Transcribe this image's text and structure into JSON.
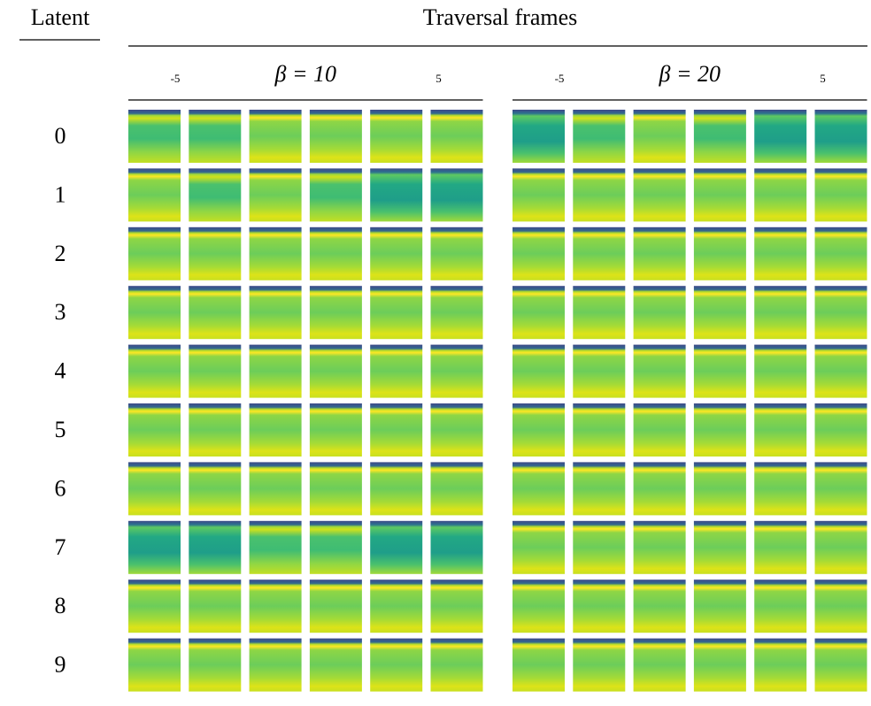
{
  "header": {
    "latent": "Latent",
    "traversal": "Traversal frames"
  },
  "groups": [
    {
      "label": "β = 10",
      "start": "-5",
      "end": "5"
    },
    {
      "label": "β = 20",
      "start": "-5",
      "end": "5"
    }
  ],
  "rows": [
    "0",
    "1",
    "2",
    "3",
    "4",
    "5",
    "6",
    "7",
    "8",
    "9"
  ]
}
